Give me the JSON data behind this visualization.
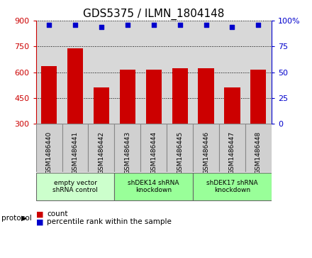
{
  "title": "GDS5375 / ILMN_1804148",
  "samples": [
    "GSM1486440",
    "GSM1486441",
    "GSM1486442",
    "GSM1486443",
    "GSM1486444",
    "GSM1486445",
    "GSM1486446",
    "GSM1486447",
    "GSM1486448"
  ],
  "counts": [
    635,
    740,
    510,
    615,
    615,
    625,
    625,
    510,
    615
  ],
  "percentiles": [
    96,
    96,
    94,
    96,
    96,
    96,
    96,
    94,
    96
  ],
  "ylim_left": [
    300,
    900
  ],
  "ylim_right": [
    0,
    100
  ],
  "yticks_left": [
    300,
    450,
    600,
    750,
    900
  ],
  "yticks_right": [
    0,
    25,
    50,
    75,
    100
  ],
  "bar_color": "#cc0000",
  "dot_color": "#0000cc",
  "groups": [
    {
      "label": "empty vector\nshRNA control",
      "start": 0,
      "end": 3,
      "color": "#ccffcc"
    },
    {
      "label": "shDEK14 shRNA\nknockdown",
      "start": 3,
      "end": 6,
      "color": "#99ff99"
    },
    {
      "label": "shDEK17 shRNA\nknockdown",
      "start": 6,
      "end": 9,
      "color": "#99ff99"
    }
  ],
  "protocol_label": "protocol",
  "legend_count_label": "count",
  "legend_percentile_label": "percentile rank within the sample",
  "background_color": "#ffffff",
  "sample_box_color": "#d0d0d0",
  "title_fontsize": 11,
  "axis_label_color_left": "#cc0000",
  "axis_label_color_right": "#0000cc"
}
